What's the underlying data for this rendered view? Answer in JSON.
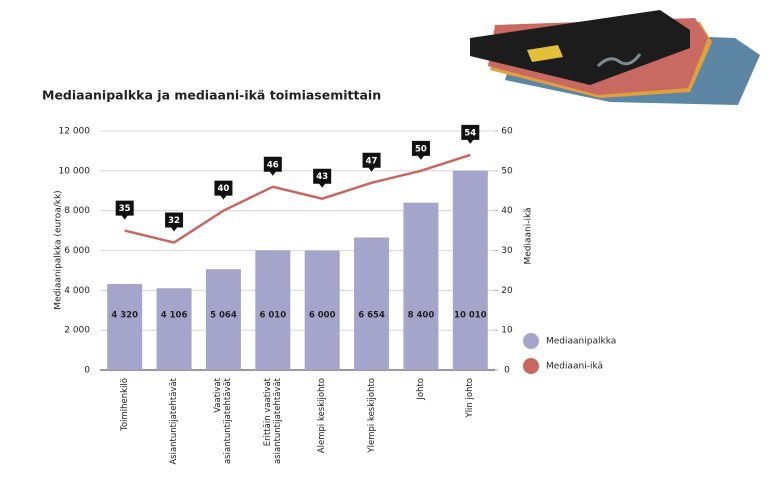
{
  "chart_data": {
    "type": "bar",
    "title": "Mediaanipalkka ja mediaani-ikä toimiasemittain",
    "y_label": "Mediaanipalkka (euroa/kk)",
    "y2_label": "Mediaani-ikä",
    "categories": [
      "Toimihenkilö",
      "Asiantuntijatehtävät",
      "Vaativat\nasiantuntijatehtävät",
      "Erittäin vaativat\nasiantuntijatehtävät",
      "Alempi keskijohto",
      "Ylempi keskijohto",
      "Johto",
      "Ylin johto"
    ],
    "series": [
      {
        "name": "Mediaanipalkka",
        "type": "bar",
        "color": "#a5a5cb",
        "values": [
          4320,
          4106,
          5064,
          6010,
          6000,
          6654,
          8400,
          10010
        ],
        "value_labels": [
          "4 320",
          "4 106",
          "5 064",
          "6 010",
          "6 000",
          "6 654",
          "8 400",
          "10 010"
        ]
      },
      {
        "name": "Mediaani-ikä",
        "type": "line",
        "axis": "y2",
        "color": "#c9675f",
        "values": [
          35,
          32,
          40,
          46,
          43,
          47,
          50,
          54
        ]
      }
    ],
    "ylim": [
      0,
      12000
    ],
    "yticks": [
      0,
      {
        "value": 2000,
        "label": "2 000"
      },
      {
        "value": 4000,
        "label": "4 000"
      },
      {
        "value": 6000,
        "label": "6 000"
      },
      {
        "value": 8000,
        "label": "8 000"
      },
      {
        "value": 10000,
        "label": "10 000"
      },
      {
        "value": 12000,
        "label": "12 000"
      }
    ],
    "y2lim": [
      0,
      60
    ],
    "y2ticks": [
      0,
      10,
      20,
      30,
      40,
      50,
      60
    ],
    "grid": true
  }
}
